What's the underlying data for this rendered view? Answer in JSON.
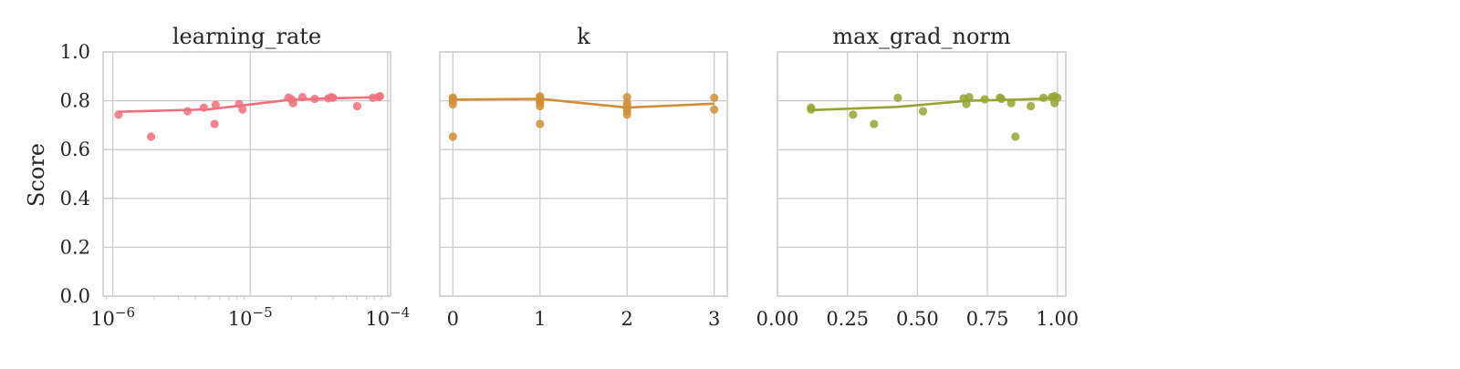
{
  "ylabel": "Score",
  "chart_data": [
    {
      "type": "scatter",
      "title": "learning_rate",
      "color": "#f0707e",
      "xscale": "log",
      "xlim": [
        8.5e-07,
        0.000105
      ],
      "ylim": [
        0,
        1
      ],
      "xticks": [
        1e-06,
        1e-05,
        0.0001
      ],
      "xtick_labels": [
        {
          "base": "10",
          "exp": "−6"
        },
        {
          "base": "10",
          "exp": "−5"
        },
        {
          "base": "10",
          "exp": "−4"
        }
      ],
      "yticks": [
        0.0,
        0.2,
        0.4,
        0.6,
        0.8,
        1.0
      ],
      "ytick_labels": [
        "0.0",
        "0.2",
        "0.4",
        "0.6",
        "0.8",
        "1.0"
      ],
      "grid": true,
      "points": [
        {
          "x": 1.1e-06,
          "y": 0.743
        },
        {
          "x": 1.9e-06,
          "y": 0.653
        },
        {
          "x": 3.5e-06,
          "y": 0.757
        },
        {
          "x": 4.6e-06,
          "y": 0.772
        },
        {
          "x": 5.5e-06,
          "y": 0.705
        },
        {
          "x": 5.6e-06,
          "y": 0.783
        },
        {
          "x": 8.3e-06,
          "y": 0.787
        },
        {
          "x": 8.8e-06,
          "y": 0.764
        },
        {
          "x": 1.9e-05,
          "y": 0.813
        },
        {
          "x": 2e-05,
          "y": 0.806
        },
        {
          "x": 2.05e-05,
          "y": 0.79
        },
        {
          "x": 2.4e-05,
          "y": 0.815
        },
        {
          "x": 2.95e-05,
          "y": 0.808
        },
        {
          "x": 3.7e-05,
          "y": 0.81
        },
        {
          "x": 3.9e-05,
          "y": 0.815
        },
        {
          "x": 4e-05,
          "y": 0.812
        },
        {
          "x": 6e-05,
          "y": 0.778
        },
        {
          "x": 7.8e-05,
          "y": 0.812
        },
        {
          "x": 8.6e-05,
          "y": 0.815
        },
        {
          "x": 8.8e-05,
          "y": 0.819
        }
      ],
      "trend": [
        {
          "x": 1.1e-06,
          "y": 0.755
        },
        {
          "x": 5e-06,
          "y": 0.765
        },
        {
          "x": 2e-05,
          "y": 0.805
        },
        {
          "x": 4e-05,
          "y": 0.81
        },
        {
          "x": 8.8e-05,
          "y": 0.815
        }
      ]
    },
    {
      "type": "scatter",
      "title": "k",
      "color": "#d08f35",
      "xscale": "linear",
      "xlim": [
        -0.15,
        3.15
      ],
      "ylim": [
        0,
        1
      ],
      "xticks": [
        0,
        1,
        2,
        3
      ],
      "xtick_labels": [
        "0",
        "1",
        "2",
        "3"
      ],
      "yticks": [
        0.0,
        0.2,
        0.4,
        0.6,
        0.8,
        1.0
      ],
      "grid": true,
      "points": [
        {
          "x": 0,
          "y": 0.653
        },
        {
          "x": 0,
          "y": 0.785
        },
        {
          "x": 0,
          "y": 0.8
        },
        {
          "x": 0,
          "y": 0.808
        },
        {
          "x": 0,
          "y": 0.813
        },
        {
          "x": 1,
          "y": 0.705
        },
        {
          "x": 1,
          "y": 0.778
        },
        {
          "x": 1,
          "y": 0.79
        },
        {
          "x": 1,
          "y": 0.8
        },
        {
          "x": 1,
          "y": 0.806
        },
        {
          "x": 1,
          "y": 0.812
        },
        {
          "x": 1,
          "y": 0.818
        },
        {
          "x": 2,
          "y": 0.743
        },
        {
          "x": 2,
          "y": 0.757
        },
        {
          "x": 2,
          "y": 0.768
        },
        {
          "x": 2,
          "y": 0.78
        },
        {
          "x": 2,
          "y": 0.79
        },
        {
          "x": 2,
          "y": 0.815
        },
        {
          "x": 3,
          "y": 0.764
        },
        {
          "x": 3,
          "y": 0.812
        }
      ],
      "trend": [
        {
          "x": 0,
          "y": 0.805
        },
        {
          "x": 1,
          "y": 0.808
        },
        {
          "x": 2,
          "y": 0.772
        },
        {
          "x": 3,
          "y": 0.788
        }
      ]
    },
    {
      "type": "scatter",
      "title": "max_grad_norm",
      "color": "#97a431",
      "xscale": "linear",
      "xlim": [
        0.0,
        1.03
      ],
      "ylim": [
        0,
        1
      ],
      "xticks": [
        0.0,
        0.25,
        0.5,
        0.75,
        1.0
      ],
      "xtick_labels": [
        "0.00",
        "0.25",
        "0.50",
        "0.75",
        "1.00"
      ],
      "yticks": [
        0.0,
        0.2,
        0.4,
        0.6,
        0.8,
        1.0
      ],
      "grid": true,
      "points": [
        {
          "x": 0.12,
          "y": 0.772
        },
        {
          "x": 0.12,
          "y": 0.764
        },
        {
          "x": 0.27,
          "y": 0.743
        },
        {
          "x": 0.345,
          "y": 0.705
        },
        {
          "x": 0.43,
          "y": 0.812
        },
        {
          "x": 0.52,
          "y": 0.757
        },
        {
          "x": 0.665,
          "y": 0.81
        },
        {
          "x": 0.675,
          "y": 0.787
        },
        {
          "x": 0.685,
          "y": 0.815
        },
        {
          "x": 0.74,
          "y": 0.806
        },
        {
          "x": 0.795,
          "y": 0.813
        },
        {
          "x": 0.8,
          "y": 0.808
        },
        {
          "x": 0.835,
          "y": 0.79
        },
        {
          "x": 0.85,
          "y": 0.653
        },
        {
          "x": 0.905,
          "y": 0.778
        },
        {
          "x": 0.95,
          "y": 0.812
        },
        {
          "x": 0.98,
          "y": 0.815
        },
        {
          "x": 0.99,
          "y": 0.819
        },
        {
          "x": 0.99,
          "y": 0.79
        },
        {
          "x": 1.0,
          "y": 0.812
        }
      ],
      "trend": [
        {
          "x": 0.12,
          "y": 0.762
        },
        {
          "x": 0.43,
          "y": 0.775
        },
        {
          "x": 0.68,
          "y": 0.8
        },
        {
          "x": 0.85,
          "y": 0.805
        },
        {
          "x": 1.0,
          "y": 0.81
        }
      ]
    }
  ]
}
